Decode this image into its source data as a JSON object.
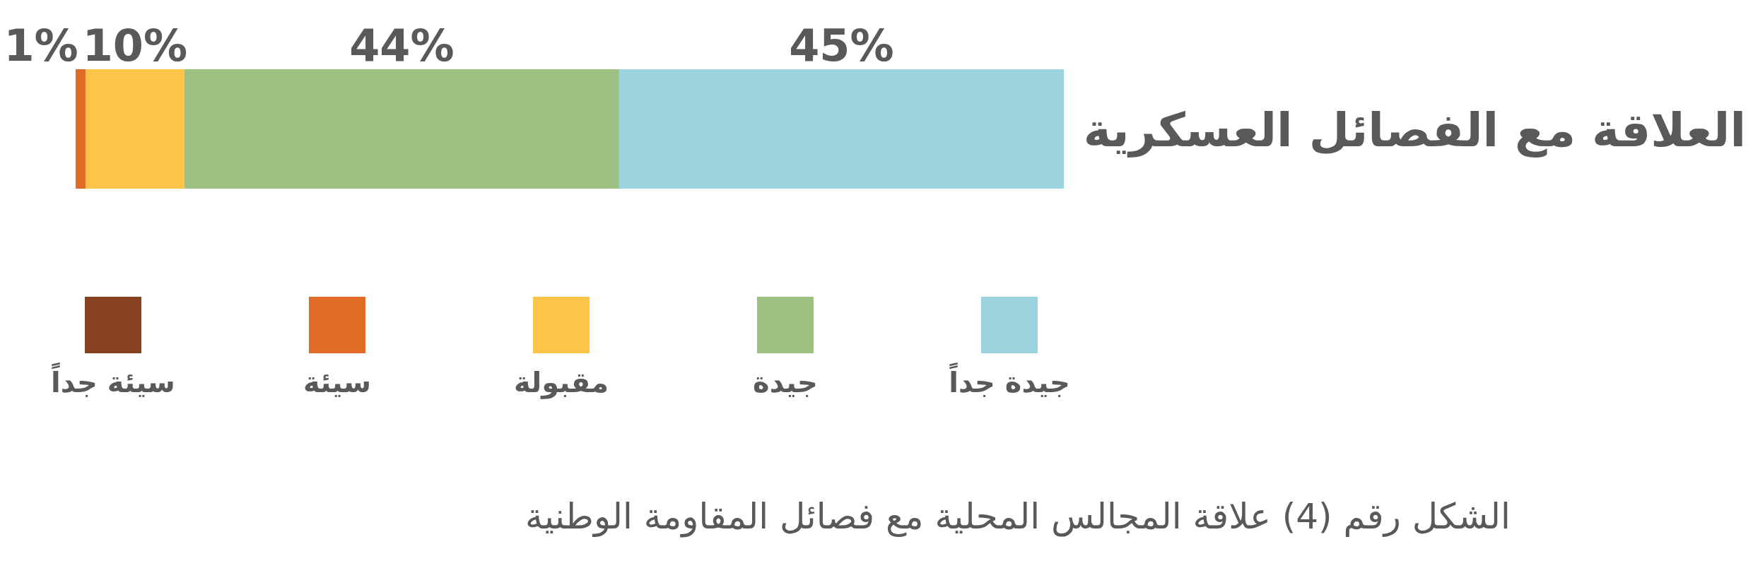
{
  "chart_data": {
    "type": "bar",
    "orientation": "horizontal",
    "stacked": true,
    "legend": "bottom",
    "categories": [
      "العلاقة مع الفصائل العسكرية"
    ],
    "series": [
      {
        "name": "سيئة جداً",
        "color": "#87421f",
        "values": [
          0
        ],
        "value_labels": [
          null
        ]
      },
      {
        "name": "سيئة",
        "color": "#e06b26",
        "values": [
          1
        ],
        "value_labels": [
          "1%"
        ]
      },
      {
        "name": "مقبولة",
        "color": "#fec447",
        "values": [
          10
        ],
        "value_labels": [
          "10%"
        ]
      },
      {
        "name": "جيدة",
        "color": "#9dc183",
        "values": [
          44
        ],
        "value_labels": [
          "44%"
        ]
      },
      {
        "name": "جيدة جداً",
        "color": "#9bd4df",
        "values": [
          45
        ],
        "value_labels": [
          "45%"
        ]
      }
    ],
    "annotations": [
      "الشكل رقم (4) علاقة المجالس المحلية مع فصائل المقاومة الوطنية"
    ]
  }
}
